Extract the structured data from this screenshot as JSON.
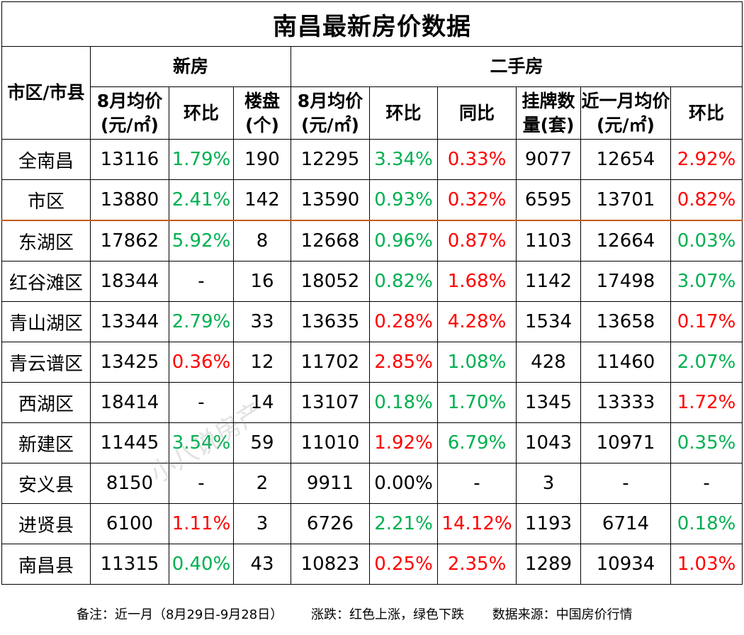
{
  "title": "南昌最新房价数据",
  "headers": {
    "district": "市区/市县",
    "new_house_group": "新房",
    "second_hand_group": "二手房",
    "new_avg_price": "8月均价(元/㎡)",
    "new_mom": "环比",
    "new_projects": "楼盘(个)",
    "sh_avg_price": "8月均价(元/㎡)",
    "sh_mom": "环比",
    "sh_yoy": "同比",
    "sh_listings": "挂牌数量(套)",
    "sh_recent_avg": "近一月均价(元/㎡)",
    "sh_recent_mom": "环比"
  },
  "rows": [
    {
      "district": "全南昌",
      "new_avg": "13116",
      "new_mom": "1.79%",
      "new_mom_dir": "down",
      "projects": "190",
      "sh_avg": "12295",
      "sh_mom": "3.34%",
      "sh_mom_dir": "down",
      "sh_yoy": "0.33%",
      "sh_yoy_dir": "up",
      "listings": "9077",
      "recent_avg": "12654",
      "recent_mom": "2.92%",
      "recent_mom_dir": "up"
    },
    {
      "district": "市区",
      "new_avg": "13880",
      "new_mom": "2.41%",
      "new_mom_dir": "down",
      "projects": "142",
      "sh_avg": "13590",
      "sh_mom": "0.93%",
      "sh_mom_dir": "down",
      "sh_yoy": "0.32%",
      "sh_yoy_dir": "up",
      "listings": "6595",
      "recent_avg": "13701",
      "recent_mom": "0.82%",
      "recent_mom_dir": "up"
    },
    {
      "district": "东湖区",
      "new_avg": "17862",
      "new_mom": "5.92%",
      "new_mom_dir": "down",
      "projects": "8",
      "sh_avg": "12668",
      "sh_mom": "0.96%",
      "sh_mom_dir": "down",
      "sh_yoy": "0.87%",
      "sh_yoy_dir": "up",
      "listings": "1103",
      "recent_avg": "12664",
      "recent_mom": "0.03%",
      "recent_mom_dir": "down"
    },
    {
      "district": "红谷滩区",
      "new_avg": "18344",
      "new_mom": "-",
      "new_mom_dir": "flat",
      "projects": "16",
      "sh_avg": "18052",
      "sh_mom": "0.82%",
      "sh_mom_dir": "down",
      "sh_yoy": "1.68%",
      "sh_yoy_dir": "up",
      "listings": "1142",
      "recent_avg": "17498",
      "recent_mom": "3.07%",
      "recent_mom_dir": "down"
    },
    {
      "district": "青山湖区",
      "new_avg": "13344",
      "new_mom": "2.79%",
      "new_mom_dir": "down",
      "projects": "33",
      "sh_avg": "13635",
      "sh_mom": "0.28%",
      "sh_mom_dir": "up",
      "sh_yoy": "4.28%",
      "sh_yoy_dir": "up",
      "listings": "1534",
      "recent_avg": "13658",
      "recent_mom": "0.17%",
      "recent_mom_dir": "up"
    },
    {
      "district": "青云谱区",
      "new_avg": "13425",
      "new_mom": "0.36%",
      "new_mom_dir": "up",
      "projects": "12",
      "sh_avg": "11702",
      "sh_mom": "2.85%",
      "sh_mom_dir": "up",
      "sh_yoy": "1.08%",
      "sh_yoy_dir": "down",
      "listings": "428",
      "recent_avg": "11460",
      "recent_mom": "2.07%",
      "recent_mom_dir": "down"
    },
    {
      "district": "西湖区",
      "new_avg": "18414",
      "new_mom": "-",
      "new_mom_dir": "flat",
      "projects": "14",
      "sh_avg": "13107",
      "sh_mom": "0.18%",
      "sh_mom_dir": "down",
      "sh_yoy": "1.70%",
      "sh_yoy_dir": "down",
      "listings": "1345",
      "recent_avg": "13333",
      "recent_mom": "1.72%",
      "recent_mom_dir": "up"
    },
    {
      "district": "新建区",
      "new_avg": "11445",
      "new_mom": "3.54%",
      "new_mom_dir": "down",
      "projects": "59",
      "sh_avg": "11010",
      "sh_mom": "1.92%",
      "sh_mom_dir": "up",
      "sh_yoy": "6.79%",
      "sh_yoy_dir": "down",
      "listings": "1043",
      "recent_avg": "10971",
      "recent_mom": "0.35%",
      "recent_mom_dir": "down"
    },
    {
      "district": "安义县",
      "new_avg": "8150",
      "new_mom": "-",
      "new_mom_dir": "flat",
      "projects": "2",
      "sh_avg": "9911",
      "sh_mom": "0.00%",
      "sh_mom_dir": "flat",
      "sh_yoy": "-",
      "sh_yoy_dir": "flat",
      "listings": "3",
      "recent_avg": "-",
      "recent_mom": "-",
      "recent_mom_dir": "flat"
    },
    {
      "district": "进贤县",
      "new_avg": "6100",
      "new_mom": "1.11%",
      "new_mom_dir": "up",
      "projects": "3",
      "sh_avg": "6726",
      "sh_mom": "2.21%",
      "sh_mom_dir": "down",
      "sh_yoy": "14.12%",
      "sh_yoy_dir": "up",
      "listings": "1193",
      "recent_avg": "6714",
      "recent_mom": "0.18%",
      "recent_mom_dir": "down"
    },
    {
      "district": "南昌县",
      "new_avg": "11315",
      "new_mom": "0.40%",
      "new_mom_dir": "down",
      "projects": "43",
      "sh_avg": "10823",
      "sh_mom": "0.25%",
      "sh_mom_dir": "up",
      "sh_yoy": "2.35%",
      "sh_yoy_dir": "up",
      "listings": "1289",
      "recent_avg": "10934",
      "recent_mom": "1.03%",
      "recent_mom_dir": "up"
    }
  ],
  "colors": {
    "up": "#ff0000",
    "down": "#00b050",
    "separator": "#c55a11"
  },
  "footer": {
    "note": "备注：近一月（8月29日-9月28日）",
    "legend": "涨跌：红色上涨，绿色下跌",
    "source": "数据来源：中国房价行情"
  },
  "watermark": "小八说房产"
}
